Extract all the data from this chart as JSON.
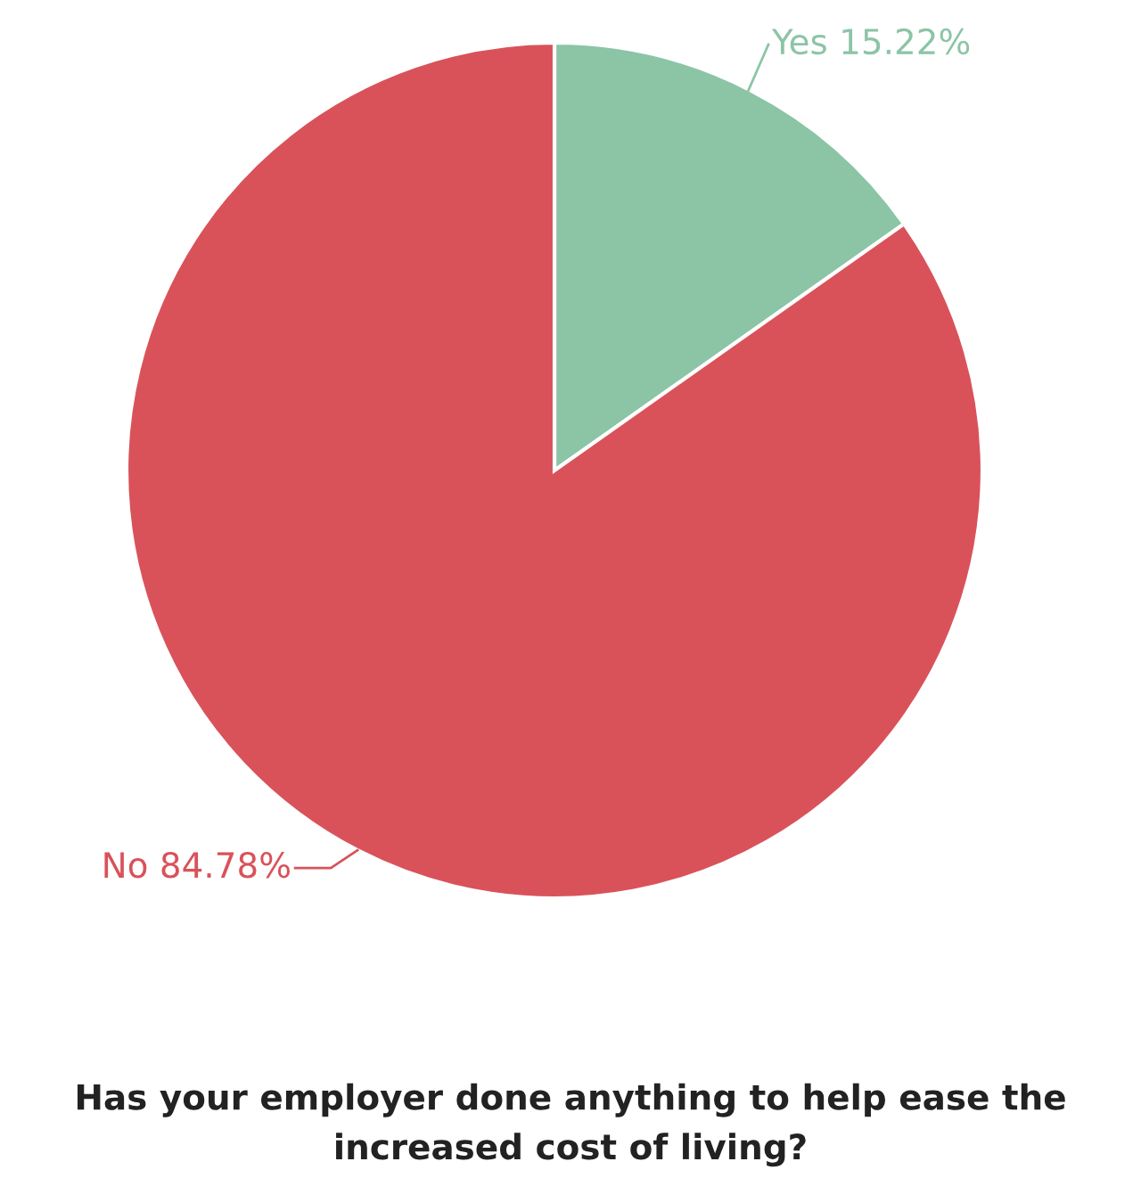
{
  "chart_data": {
    "type": "pie",
    "title": "Has your employer done anything to help ease the increased cost of living?",
    "categories": [
      "Yes",
      "No"
    ],
    "values": [
      15.22,
      84.78
    ],
    "value_labels": [
      "15.22%",
      "84.78%"
    ],
    "colors": [
      "#8cc4a6",
      "#d9525a"
    ]
  }
}
